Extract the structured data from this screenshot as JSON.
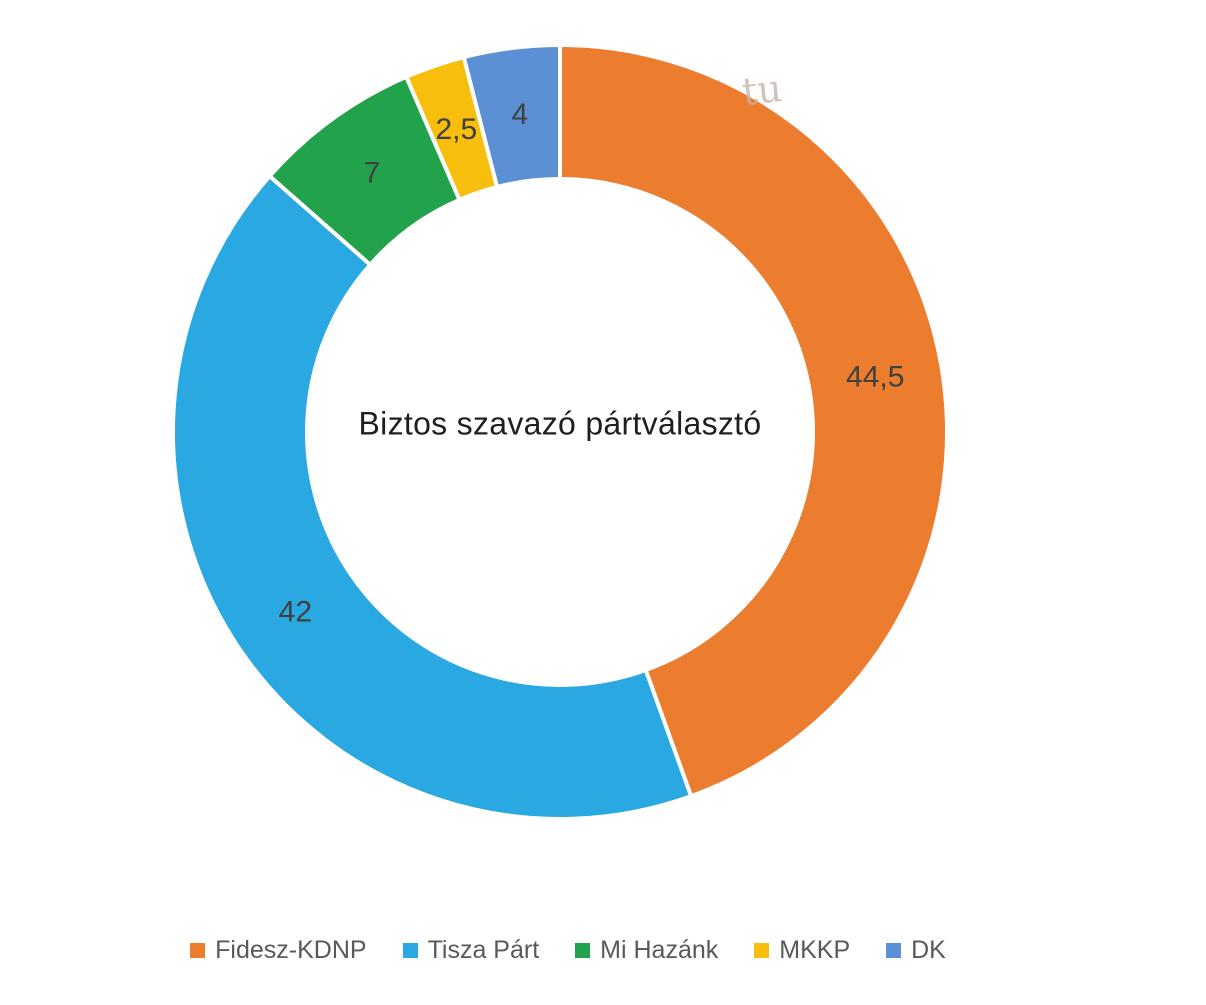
{
  "page": {
    "background": "#ffffff"
  },
  "chart_data": {
    "type": "pie",
    "subtype": "donut",
    "title": "Biztos szavazó pártválasztó",
    "categories": [
      "Fidesz-KDNP",
      "Tisza Párt",
      "Mi Hazánk",
      "MKKP",
      "DK"
    ],
    "values": [
      44.5,
      42,
      7,
      2.5,
      4
    ],
    "value_labels": [
      "44,5",
      "42",
      "7",
      "2,5",
      "4"
    ],
    "colors": [
      "#EC7D2E",
      "#29A8E2",
      "#21A24B",
      "#F7BE0D",
      "#5B90D5"
    ],
    "total": 100,
    "direction": "clockwise",
    "start_angle_deg": 0,
    "hole_ratio": 0.65,
    "legend_position": "bottom",
    "title_color": "#1f1f1f",
    "value_label_color": "#404040",
    "legend_text_color": "#595959",
    "slice_border_color": "#ffffff"
  },
  "watermark": {
    "text": "tu"
  }
}
